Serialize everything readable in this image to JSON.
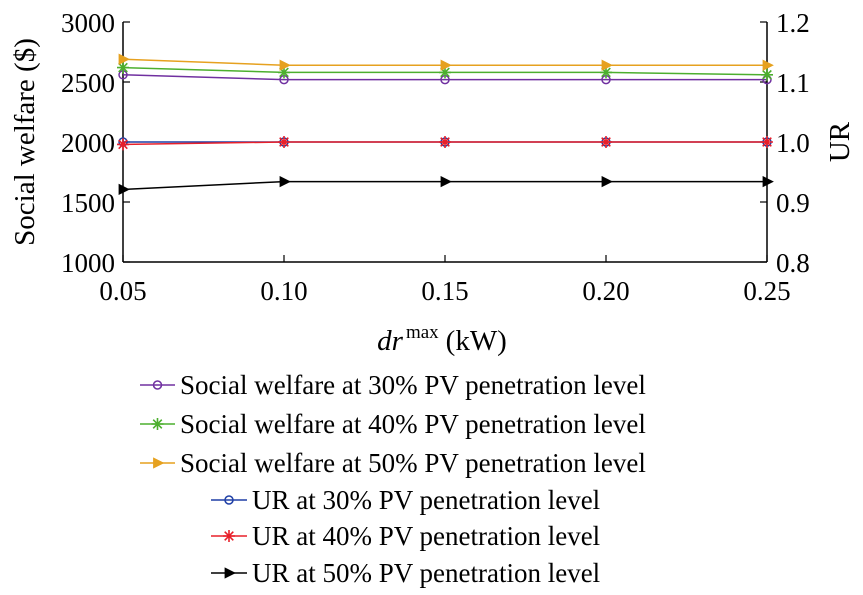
{
  "chart_data": {
    "type": "line",
    "x": [
      0.05,
      0.1,
      0.15,
      0.2,
      0.25
    ],
    "x_tick_labels": [
      "0.05",
      "0.10",
      "0.15",
      "0.20",
      "0.25"
    ],
    "xlabel_italic": "dr",
    "xlabel_superscript": "max",
    "xlabel_unit": "(kW)",
    "ylabel_left": "Social welfare ($)",
    "ylabel_right": "UR",
    "ylim_left": [
      1000,
      3000
    ],
    "ylim_right": [
      0.8,
      1.2
    ],
    "y_left_ticks": [
      1000,
      1500,
      2000,
      2500,
      3000
    ],
    "y_left_tick_labels": [
      "1000",
      "1500",
      "2000",
      "2500",
      "3000"
    ],
    "y_right_ticks": [
      0.8,
      0.9,
      1.0,
      1.1,
      1.2
    ],
    "y_right_tick_labels": [
      "0.8",
      "0.9",
      "1.0",
      "1.1",
      "1.2"
    ],
    "grid": false,
    "legend_position": "bottom",
    "series": [
      {
        "name": "Social welfare at 30% PV penetration level",
        "axis": "left",
        "color": "#7030a0",
        "marker": "circle",
        "values": [
          2560,
          2520,
          2520,
          2520,
          2520
        ]
      },
      {
        "name": "Social welfare at 40% PV penetration level",
        "axis": "left",
        "color": "#4caf2e",
        "marker": "star",
        "values": [
          2620,
          2580,
          2580,
          2580,
          2560
        ]
      },
      {
        "name": "Social welfare at 50% PV penetration level",
        "axis": "left",
        "color": "#e6a11f",
        "marker": "triangle-right",
        "values": [
          2690,
          2640,
          2640,
          2640,
          2640
        ]
      },
      {
        "name": "UR at 30% PV penetration level",
        "axis": "right",
        "color": "#1f3fa6",
        "marker": "circle",
        "values": [
          1.0,
          1.0,
          1.0,
          1.0,
          1.0
        ]
      },
      {
        "name": "UR at 40% PV penetration level",
        "axis": "right",
        "color": "#e8202a",
        "marker": "star",
        "values": [
          0.996,
          1.0,
          1.0,
          1.0,
          1.0
        ]
      },
      {
        "name": "UR at 50% PV penetration level",
        "axis": "right",
        "color": "#000000",
        "marker": "triangle-right",
        "values": [
          0.921,
          0.934,
          0.934,
          0.934,
          0.934
        ]
      }
    ]
  }
}
